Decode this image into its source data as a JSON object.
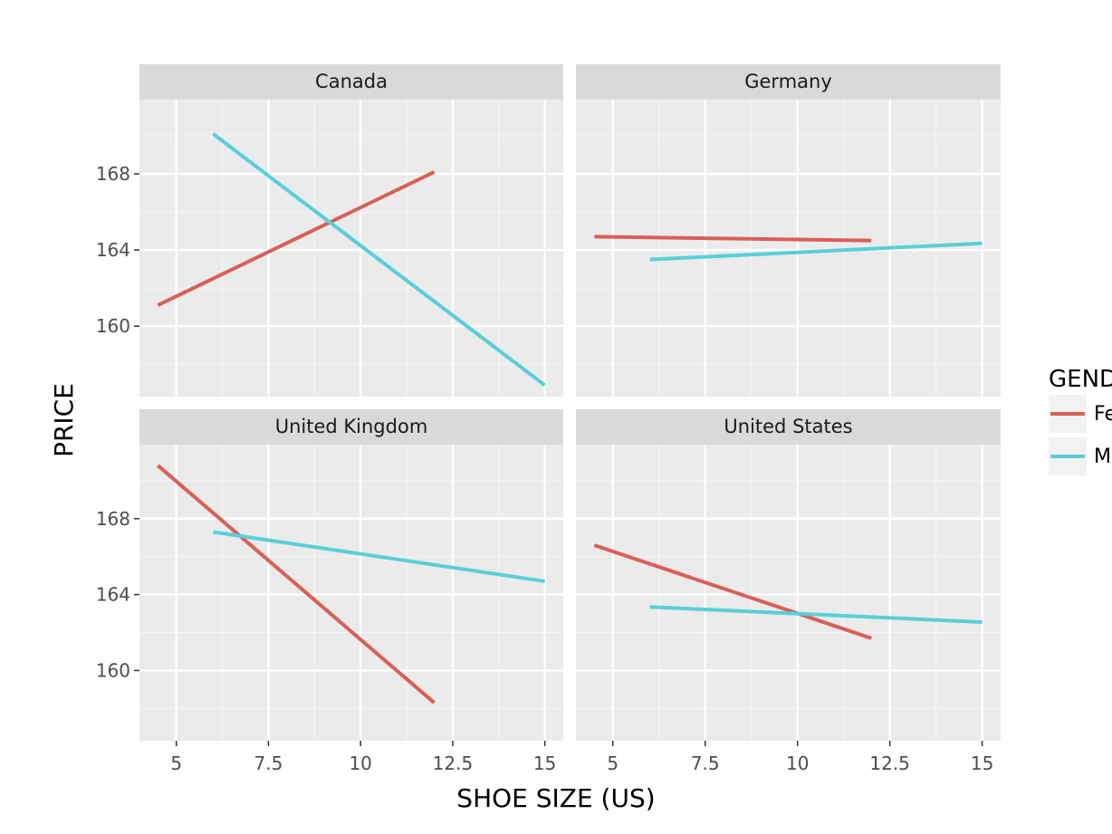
{
  "chart_data": {
    "type": "line",
    "xlabel": "SHOE SIZE (US)",
    "ylabel": "PRICE",
    "xlim": [
      4,
      15.5
    ],
    "ylim": [
      156.3,
      171.9
    ],
    "xticks": [
      5,
      7.5,
      10,
      12.5,
      15
    ],
    "xtick_labels": [
      "5",
      "7.5",
      "10",
      "12.5",
      "15"
    ],
    "yticks": [
      160,
      164,
      168
    ],
    "ytick_labels": [
      "160",
      "164",
      "168"
    ],
    "grid": true,
    "legend": {
      "title": "GEND",
      "placement": "right",
      "entries": [
        {
          "label": "Fe",
          "color": "#d95f57"
        },
        {
          "label": "M",
          "color": "#58cfda"
        }
      ]
    },
    "facets": [
      {
        "title": "Canada",
        "series": [
          {
            "key": "female",
            "color": "#d95f57",
            "x": [
              4.5,
              12
            ],
            "y": [
              161.1,
              168.1
            ]
          },
          {
            "key": "male",
            "color": "#58cfda",
            "x": [
              6,
              15
            ],
            "y": [
              170.1,
              156.9
            ]
          }
        ]
      },
      {
        "title": "Germany",
        "series": [
          {
            "key": "female",
            "color": "#d95f57",
            "x": [
              4.5,
              12
            ],
            "y": [
              164.7,
              164.5
            ]
          },
          {
            "key": "male",
            "color": "#58cfda",
            "x": [
              6,
              15
            ],
            "y": [
              163.5,
              164.35
            ]
          }
        ]
      },
      {
        "title": "United Kingdom",
        "series": [
          {
            "key": "female",
            "color": "#d95f57",
            "x": [
              4.5,
              12
            ],
            "y": [
              170.8,
              158.3
            ]
          },
          {
            "key": "male",
            "color": "#58cfda",
            "x": [
              6,
              15
            ],
            "y": [
              167.3,
              164.7
            ]
          }
        ]
      },
      {
        "title": "United States",
        "series": [
          {
            "key": "female",
            "color": "#d95f57",
            "x": [
              4.5,
              12
            ],
            "y": [
              166.6,
              161.7
            ]
          },
          {
            "key": "male",
            "color": "#58cfda",
            "x": [
              6,
              15
            ],
            "y": [
              163.35,
              162.55
            ]
          }
        ]
      }
    ]
  }
}
